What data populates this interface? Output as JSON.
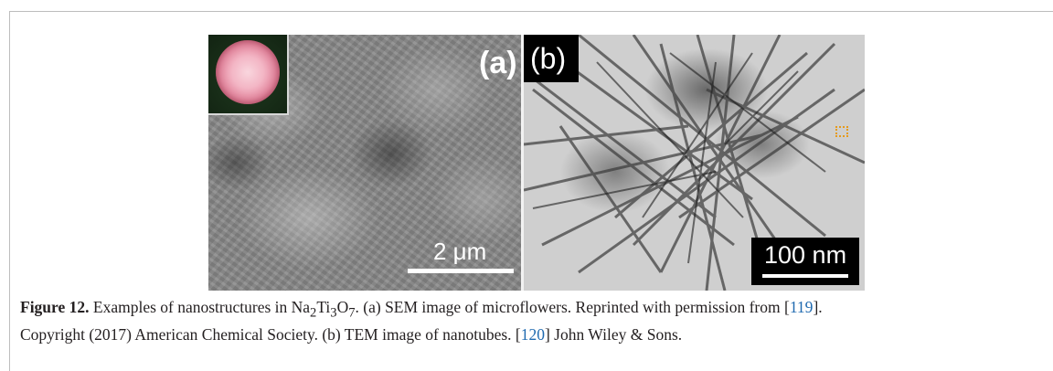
{
  "figure": {
    "panel_a_label": "(a)",
    "panel_b_label": "(b)",
    "scale_bar_a": "2 μm",
    "scale_bar_b": "100 nm"
  },
  "caption": {
    "figure_label": "Figure 12.",
    "text_1": " Examples of nanostructures in Na",
    "sub_1": "2",
    "text_2": "Ti",
    "sub_2": "3",
    "text_3": "O",
    "sub_3": "7",
    "text_4": ". (a) SEM image of microflowers. Reprinted with permission from [",
    "ref_1": "119",
    "text_5": "].",
    "text_6": "Copyright (2017) American Chemical Society. (b) TEM image of nanotubes. [",
    "ref_2": "120",
    "text_7": "] John Wiley & Sons."
  }
}
